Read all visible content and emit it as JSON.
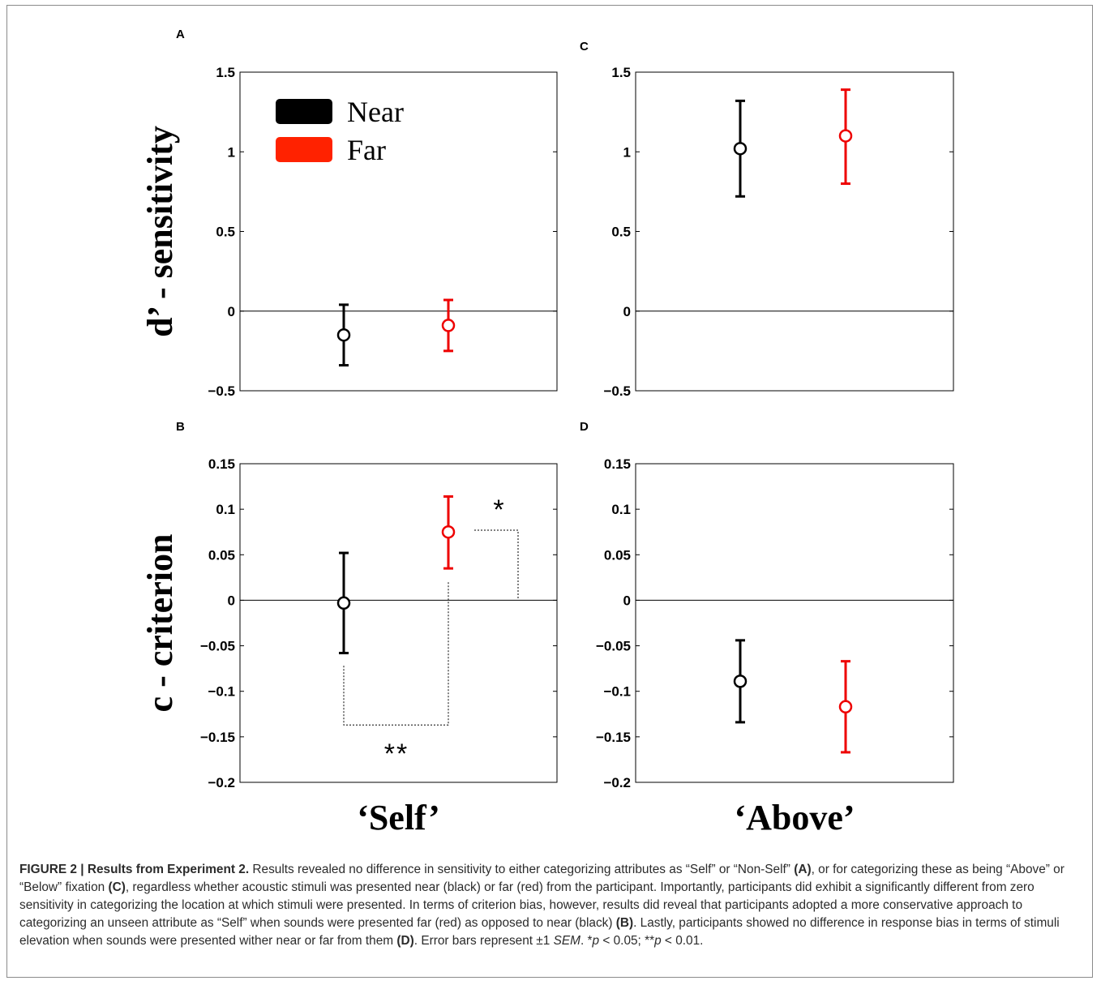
{
  "chart_data": [
    {
      "panel": "A",
      "type": "scatter",
      "ylabel": "d’ - sensitivity",
      "ylim": [
        -0.5,
        1.5
      ],
      "yticks": [
        "1.5",
        "1",
        "0.5",
        "0",
        "−0.5"
      ],
      "legend": [
        {
          "name": "Near",
          "color": "#000000"
        },
        {
          "name": "Far",
          "color": "#ff2200"
        }
      ],
      "legend_position": "top-left",
      "series": [
        {
          "name": "Near",
          "color": "#000000",
          "mean": -0.15,
          "low": -0.34,
          "high": 0.04
        },
        {
          "name": "Far",
          "color": "#ee0000",
          "mean": -0.09,
          "low": -0.25,
          "high": 0.07
        }
      ],
      "zero_line": true
    },
    {
      "panel": "C",
      "type": "scatter",
      "ylim": [
        -0.5,
        1.5
      ],
      "yticks": [
        "1.5",
        "1",
        "0.5",
        "0",
        "−0.5"
      ],
      "series": [
        {
          "name": "Near",
          "color": "#000000",
          "mean": 1.02,
          "low": 0.72,
          "high": 1.32
        },
        {
          "name": "Far",
          "color": "#ee0000",
          "mean": 1.1,
          "low": 0.8,
          "high": 1.39
        }
      ],
      "zero_line": true
    },
    {
      "panel": "B",
      "type": "scatter",
      "ylabel": "c - criterion",
      "xlabel": "‘Self’",
      "ylim": [
        -0.2,
        0.15
      ],
      "yticks": [
        "0.15",
        "0.1",
        "0.05",
        "0",
        "−0.05",
        "−0.1",
        "−0.15",
        "−0.2"
      ],
      "series": [
        {
          "name": "Near",
          "color": "#000000",
          "mean": -0.003,
          "low": -0.058,
          "high": 0.052
        },
        {
          "name": "Far",
          "color": "#ee0000",
          "mean": 0.075,
          "low": 0.035,
          "high": 0.114
        }
      ],
      "zero_line": true,
      "annotations": [
        "*",
        "**"
      ]
    },
    {
      "panel": "D",
      "type": "scatter",
      "xlabel": "‘Above’",
      "ylim": [
        -0.2,
        0.15
      ],
      "yticks": [
        "0.15",
        "0.1",
        "0.05",
        "0",
        "−0.05",
        "−0.1",
        "−0.15",
        "−0.2"
      ],
      "series": [
        {
          "name": "Near",
          "color": "#000000",
          "mean": -0.089,
          "low": -0.134,
          "high": -0.044
        },
        {
          "name": "Far",
          "color": "#ee0000",
          "mean": -0.117,
          "low": -0.167,
          "high": -0.067
        }
      ],
      "zero_line": true
    }
  ],
  "caption": {
    "label": "FIGURE 2 | Results from Experiment 2.",
    "s1": " Results revealed no difference in sensitivity to either categorizing attributes as “Self” or “Non-Self” ",
    "refA": "(A)",
    "s2": ", or for categorizing these as being “Above” or “Below” fixation ",
    "refC": "(C)",
    "s3": ", regardless whether acoustic stimuli was presented near (black) or far (red) from the participant. Importantly, participants did exhibit a significantly different from zero sensitivity in categorizing the location at which stimuli were presented. In terms of criterion bias, however, results did reveal that participants adopted a more conservative approach to categorizing an unseen attribute as “Self” when sounds were presented far (red) as opposed to near (black) ",
    "refB": "(B)",
    "s4": ". Lastly, participants showed no difference in response bias in terms of stimuli elevation when sounds were presented wither near or far from them ",
    "refD": "(D)",
    "s5": ". Error bars represent ±1 ",
    "sem": "SEM",
    "s6": ". *",
    "p1": "p",
    "s7": " < 0.05; **",
    "p2": "p",
    "s8": " < 0.01."
  }
}
